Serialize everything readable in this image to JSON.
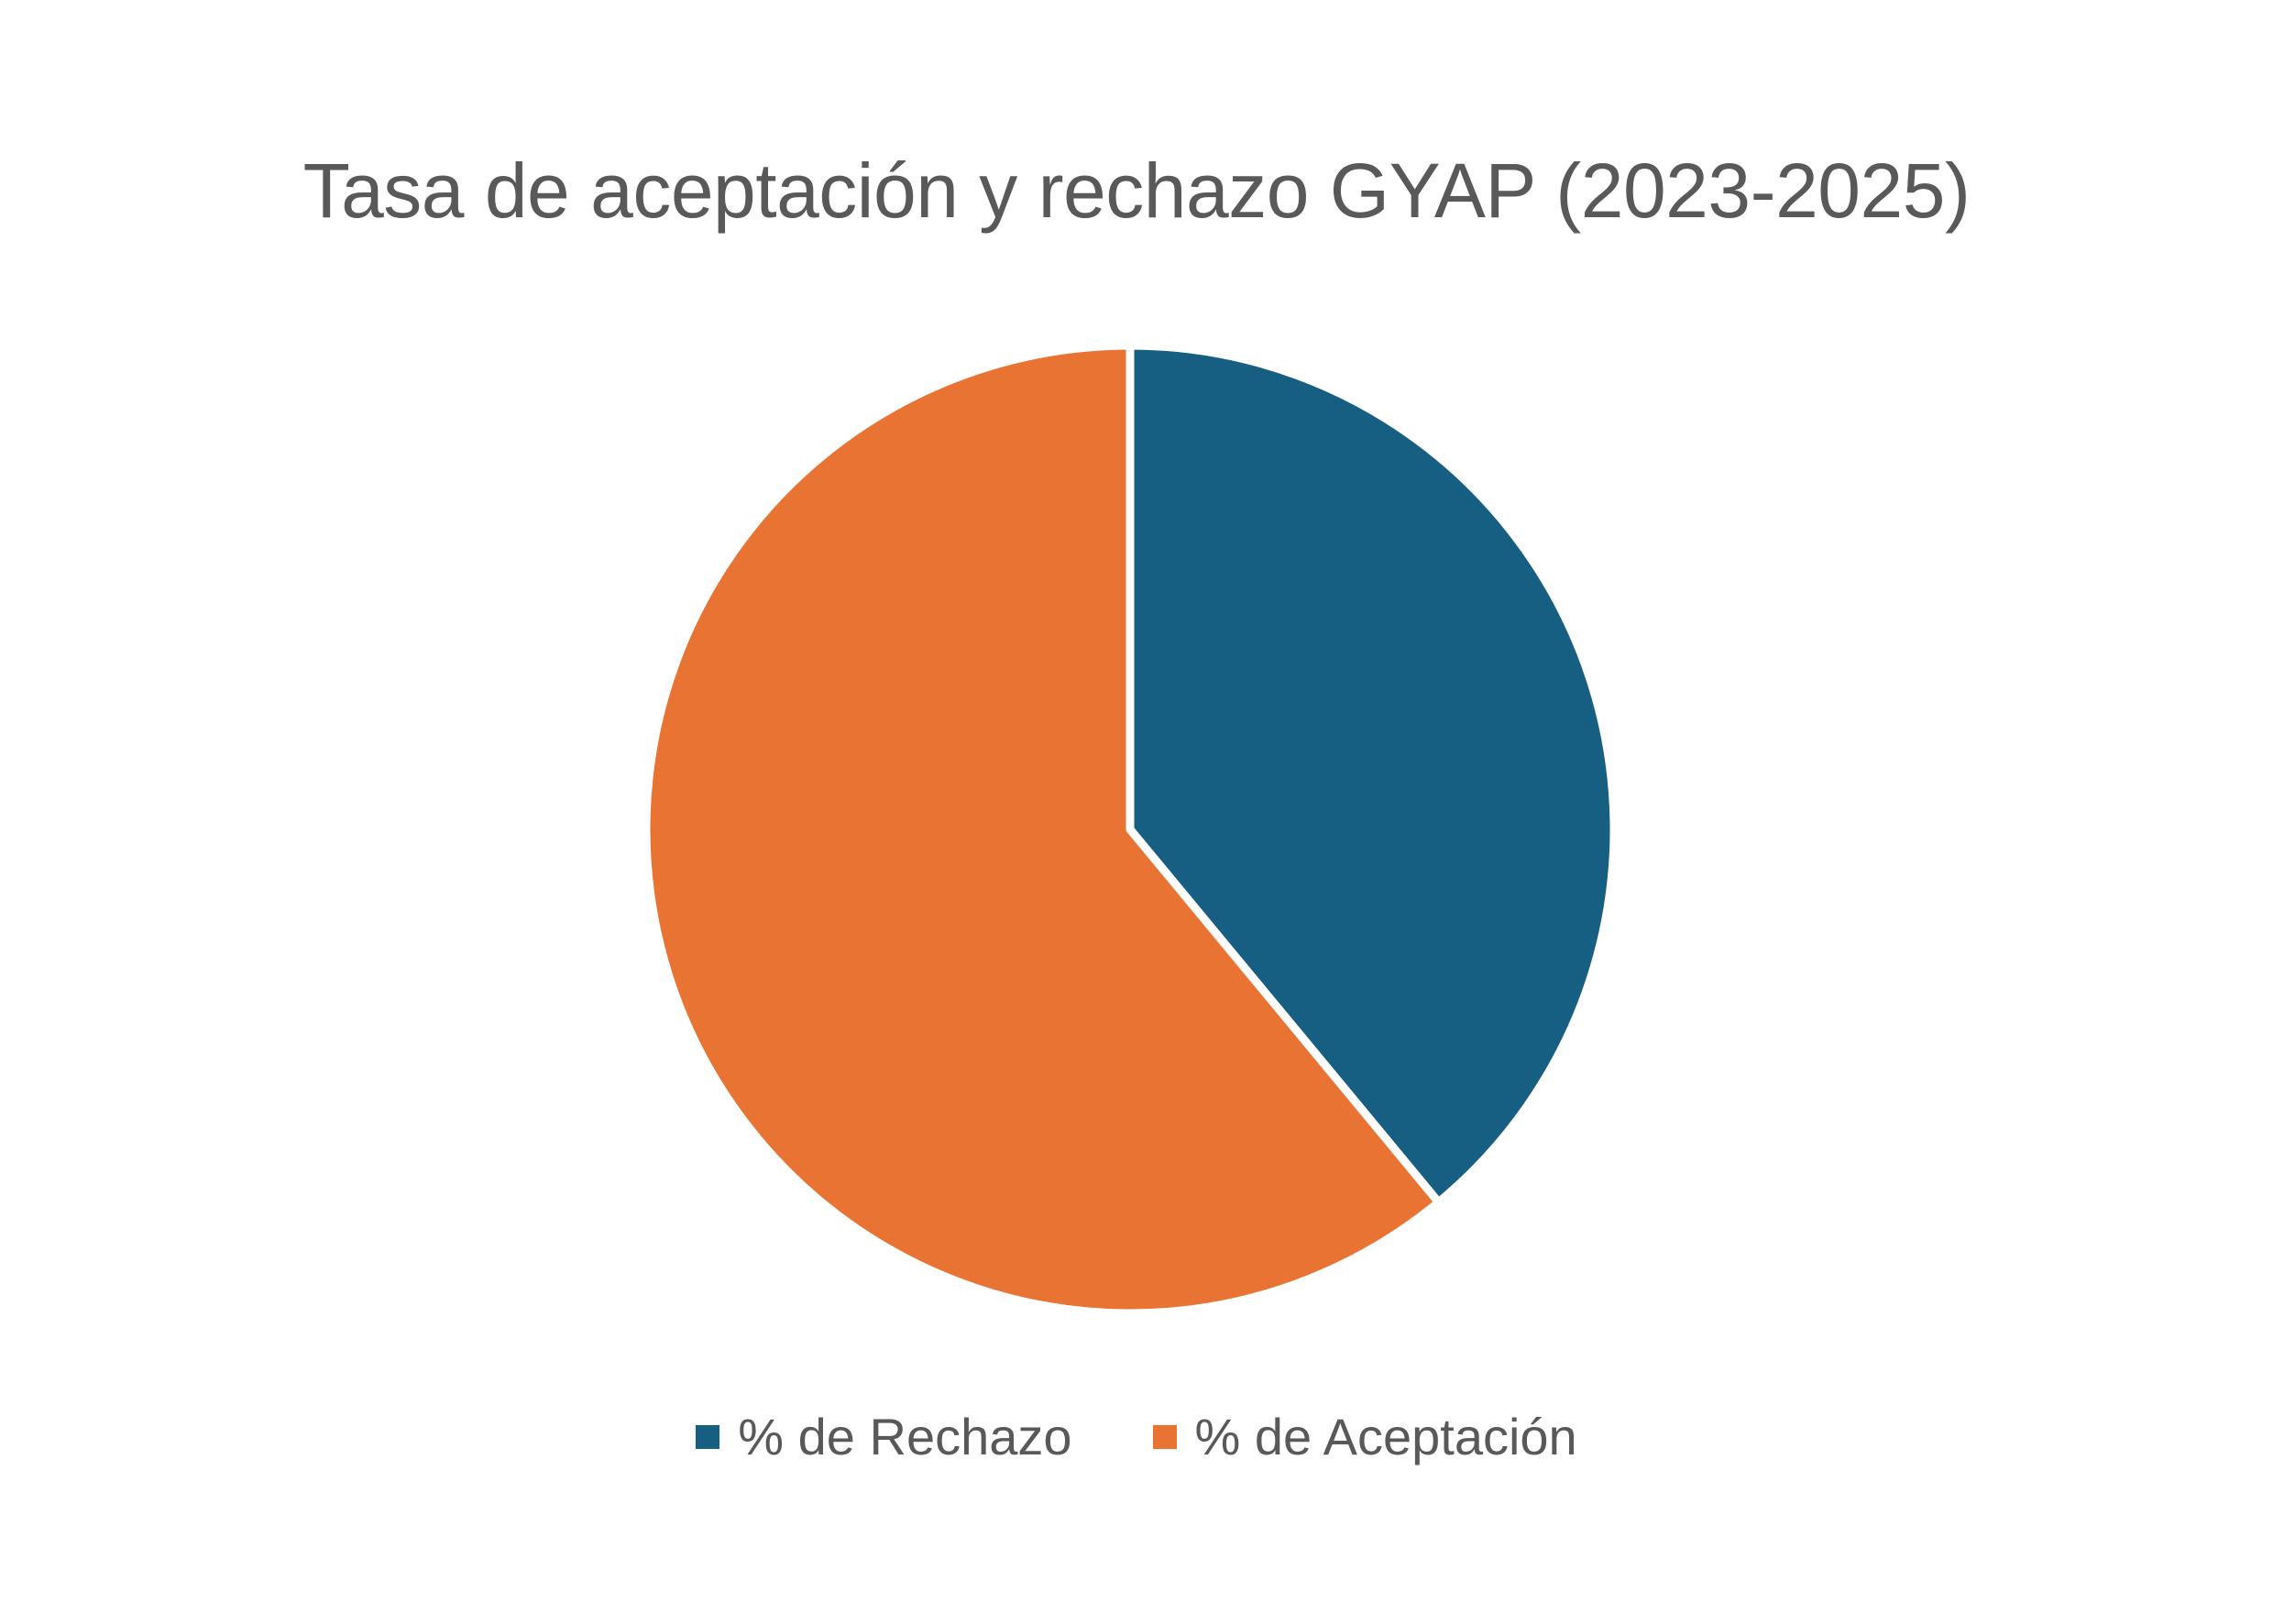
{
  "chart_data": {
    "type": "pie",
    "title": "Tasa de aceptación y rechazo GYAP (2023-2025)",
    "categories": [
      "% de Rechazo",
      "% de Aceptación"
    ],
    "values": [
      39,
      61
    ],
    "colors": [
      "#165F82",
      "#E87332"
    ],
    "start_angle": "12 o'clock, clockwise",
    "legend_position": "bottom"
  }
}
